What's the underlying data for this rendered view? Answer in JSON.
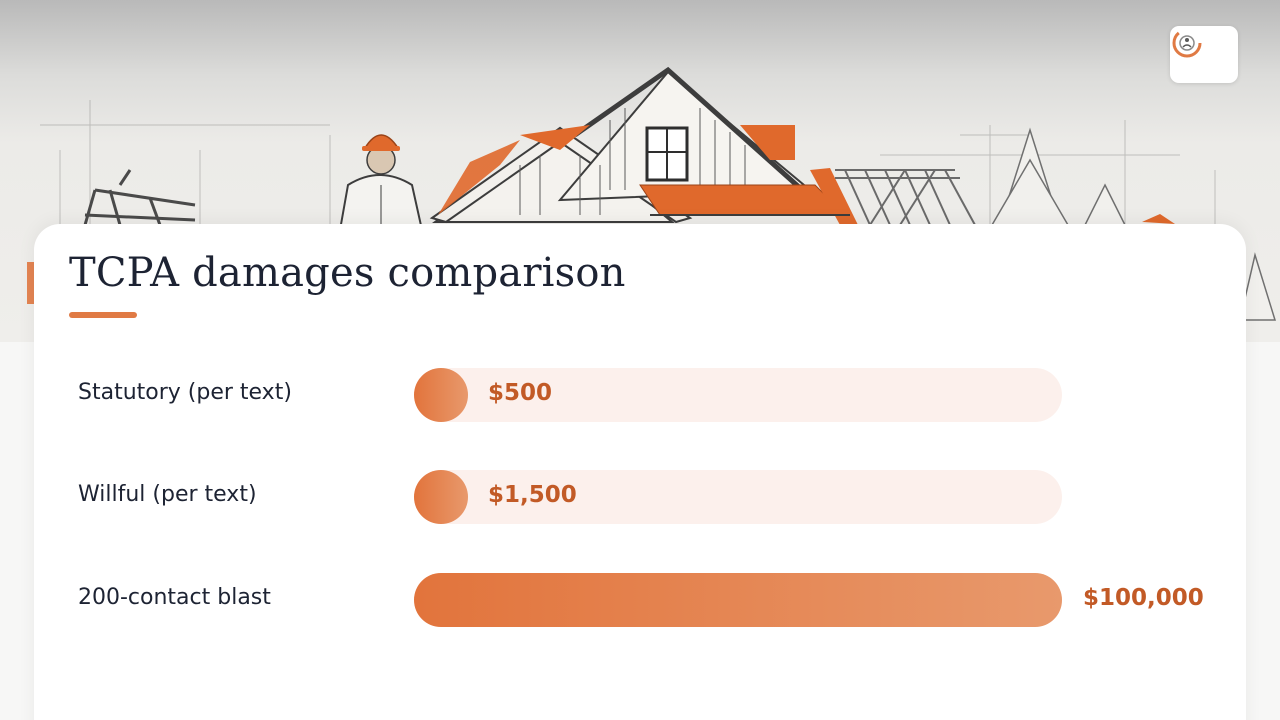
{
  "chart_data": {
    "type": "bar",
    "orientation": "horizontal",
    "title": "TCPA damages comparison",
    "categories": [
      "Statutory (per text)",
      "Willful (per text)",
      "200-contact blast"
    ],
    "values": [
      500,
      1500,
      100000
    ],
    "value_labels": [
      "$500",
      "$1,500",
      "$100,000"
    ],
    "xlim": [
      0,
      100000
    ],
    "grid": false,
    "legend": "none",
    "colors": {
      "fill_start": "#e2743c",
      "fill_end": "#e8996c",
      "track": "#fcf0ec",
      "value_text": "#c25a26",
      "accent": "#e07a44"
    }
  },
  "header": {
    "logo_icon": "brand-logo-icon",
    "hero_image": "house-construction-sketch"
  }
}
